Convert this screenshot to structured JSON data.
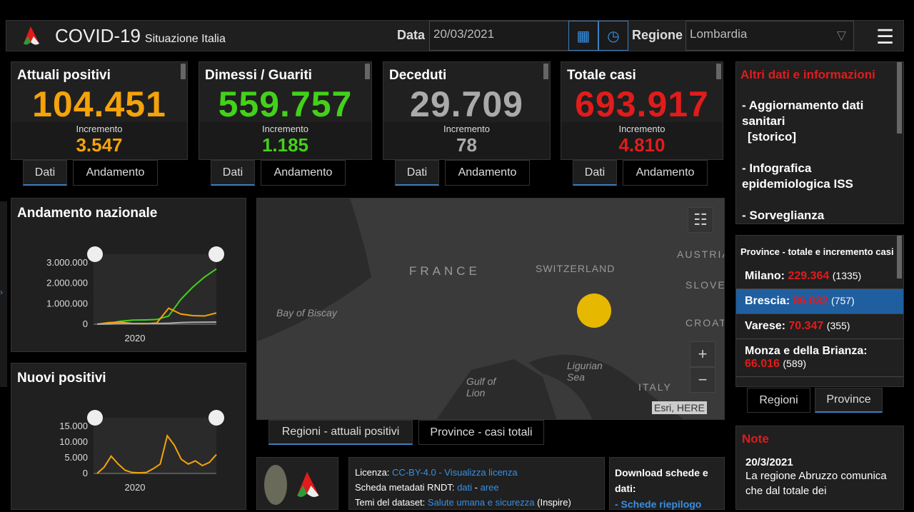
{
  "header": {
    "title": "COVID-19",
    "subtitle": "Situazione Italia",
    "date_label": "Data",
    "date_value": "20/03/2021",
    "region_label": "Regione",
    "region_value": "Lombardia",
    "icons": [
      "logo",
      "calendar-icon",
      "clock-icon",
      "chevron-down-icon",
      "hamburger-menu-icon"
    ]
  },
  "cards": [
    {
      "title": "Attuali positivi",
      "value": "104.451",
      "inc_label": "Incremento",
      "inc": "3.547",
      "color": "#f5a30a"
    },
    {
      "title": "Dimessi / Guariti",
      "value": "559.757",
      "inc_label": "Incremento",
      "inc": "1.185",
      "color": "#43d11a"
    },
    {
      "title": "Deceduti",
      "value": "29.709",
      "inc_label": "Incremento",
      "inc": "78",
      "color": "#aaaaaa"
    },
    {
      "title": "Totale casi",
      "value": "693.917",
      "inc_label": "Incremento",
      "inc": "4.810",
      "color": "#e21b1b"
    }
  ],
  "card_tabs": {
    "dati": "Dati",
    "andamento": "Andamento"
  },
  "chart_data": [
    {
      "type": "line",
      "title": "Andamento nazionale",
      "x_tick": "2020",
      "y_ticks": [
        "3.000.000",
        "2.000.000",
        "1.000.000",
        "0"
      ],
      "ylim": [
        0,
        3000000
      ],
      "series": [
        {
          "color": "#43d11a",
          "values": [
            0,
            50000,
            150000,
            200000,
            210000,
            230000,
            400000,
            1200000,
            1800000,
            2300000,
            2700000
          ]
        },
        {
          "color": "#f5a30a",
          "values": [
            0,
            80000,
            100000,
            30000,
            20000,
            60000,
            780000,
            500000,
            420000,
            400000,
            550000
          ]
        },
        {
          "color": "#aaaaaa",
          "values": [
            0,
            10000,
            30000,
            35000,
            36000,
            37000,
            50000,
            80000,
            95000,
            100000,
            105000
          ]
        }
      ]
    },
    {
      "type": "line",
      "title": "Nuovi positivi",
      "x_tick": "2020",
      "y_ticks": [
        "15.000",
        "10.000",
        "5.000",
        "0"
      ],
      "ylim": [
        0,
        15000
      ],
      "series": [
        {
          "color": "#f5a30a",
          "values": [
            0,
            2000,
            5500,
            3000,
            1000,
            300,
            200,
            300,
            1500,
            3000,
            12000,
            9000,
            4500,
            3000,
            4000,
            2500,
            3500,
            6000
          ]
        }
      ]
    }
  ],
  "map": {
    "labels": [
      "FRANCE",
      "SWITZERLAND",
      "AUSTRIA",
      "SLOVEN",
      "CROATI",
      "Bay of Biscay",
      "Ligurian Sea",
      "Gulf of Lion",
      "ITALY"
    ],
    "attribution": "Esri, HERE",
    "zoom_in": "+",
    "zoom_out": "−",
    "tabs": [
      "Regioni - attuali positivi",
      "Province - casi totali"
    ]
  },
  "info": {
    "title": "Altri dati e informazioni",
    "items": [
      "- Aggiornamento dati sanitari",
      "[storico]",
      "- Infografica epidemiologica ISS",
      "- Sorveglianza"
    ]
  },
  "province": {
    "title": "Province - totale e incremento casi",
    "rows": [
      {
        "name": "Milano:",
        "total": "229.364",
        "inc": "(1335)"
      },
      {
        "name": "Brescia:",
        "total": "86.032",
        "inc": "(757)"
      },
      {
        "name": "Varese:",
        "total": "70.347",
        "inc": "(355)"
      },
      {
        "name": "Monza e della Brianza:",
        "total": "66.016",
        "inc": "(589)"
      }
    ],
    "tabs": [
      "Regioni",
      "Province"
    ]
  },
  "note": {
    "title": "Note",
    "date": "20/3/2021",
    "text": "La regione Abruzzo comunica che dal totale dei"
  },
  "license": {
    "l1": "Licenza:",
    "cc": "CC-BY-4.0",
    "sep": " - ",
    "vis": "Visualizza licenza",
    "l2": "Scheda metadati RNDT:",
    "dati": "dati",
    "aree": "aree",
    "l3": "Temi del dataset:",
    "tema": "Salute umana e sicurezza",
    "insp": "(Inspire)"
  },
  "download": {
    "title": "Download schede e dati:",
    "link": "- Schede riepilogo"
  }
}
